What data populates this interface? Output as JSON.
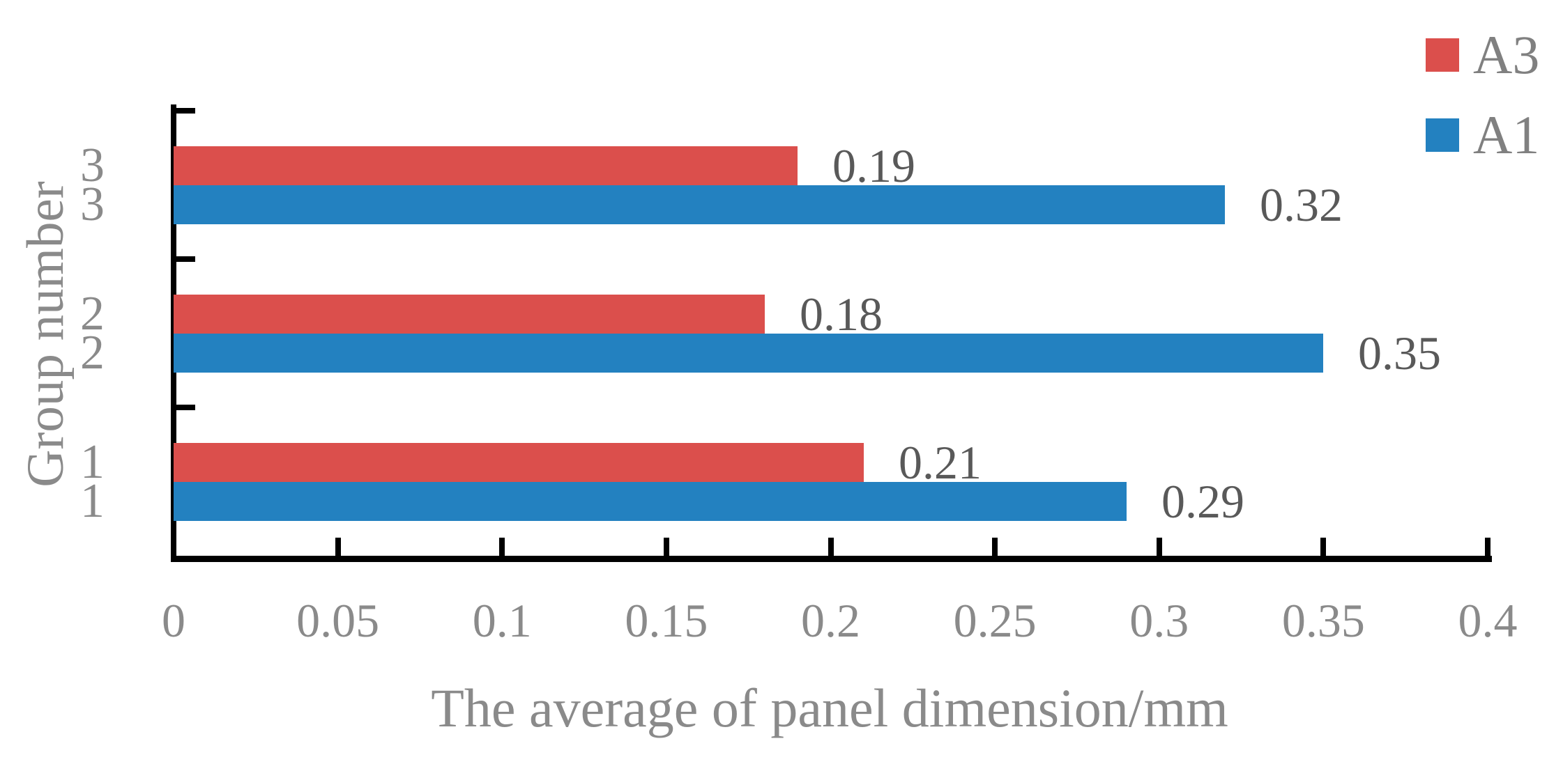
{
  "chart_data": {
    "type": "bar",
    "orientation": "horizontal",
    "xlabel": "The average of panel dimension/mm",
    "ylabel": "Group number",
    "categories": [
      "3",
      "2",
      "1"
    ],
    "series": [
      {
        "name": "A3",
        "color": "#DB4F4C",
        "values": [
          0.19,
          0.18,
          0.21
        ],
        "value_labels": [
          "0.19",
          "0.18",
          "0.21"
        ]
      },
      {
        "name": "A1",
        "color": "#2381C0",
        "values": [
          0.32,
          0.35,
          0.29
        ],
        "value_labels": [
          "0.32",
          "0.35",
          "0.29"
        ]
      }
    ],
    "xlim": [
      0,
      0.4
    ],
    "xticks": [
      0,
      0.05,
      0.1,
      0.15,
      0.2,
      0.25,
      0.3,
      0.35,
      0.4
    ],
    "xtick_labels": [
      "0",
      "0.05",
      "0.1",
      "0.15",
      "0.2",
      "0.25",
      "0.3",
      "0.35",
      "0.4"
    ],
    "grid": false,
    "legend_position": "top-right",
    "bar_value_label_color": "#595959",
    "axis_text_color": "#8a8a8a",
    "axis_line_color": "#000000"
  }
}
